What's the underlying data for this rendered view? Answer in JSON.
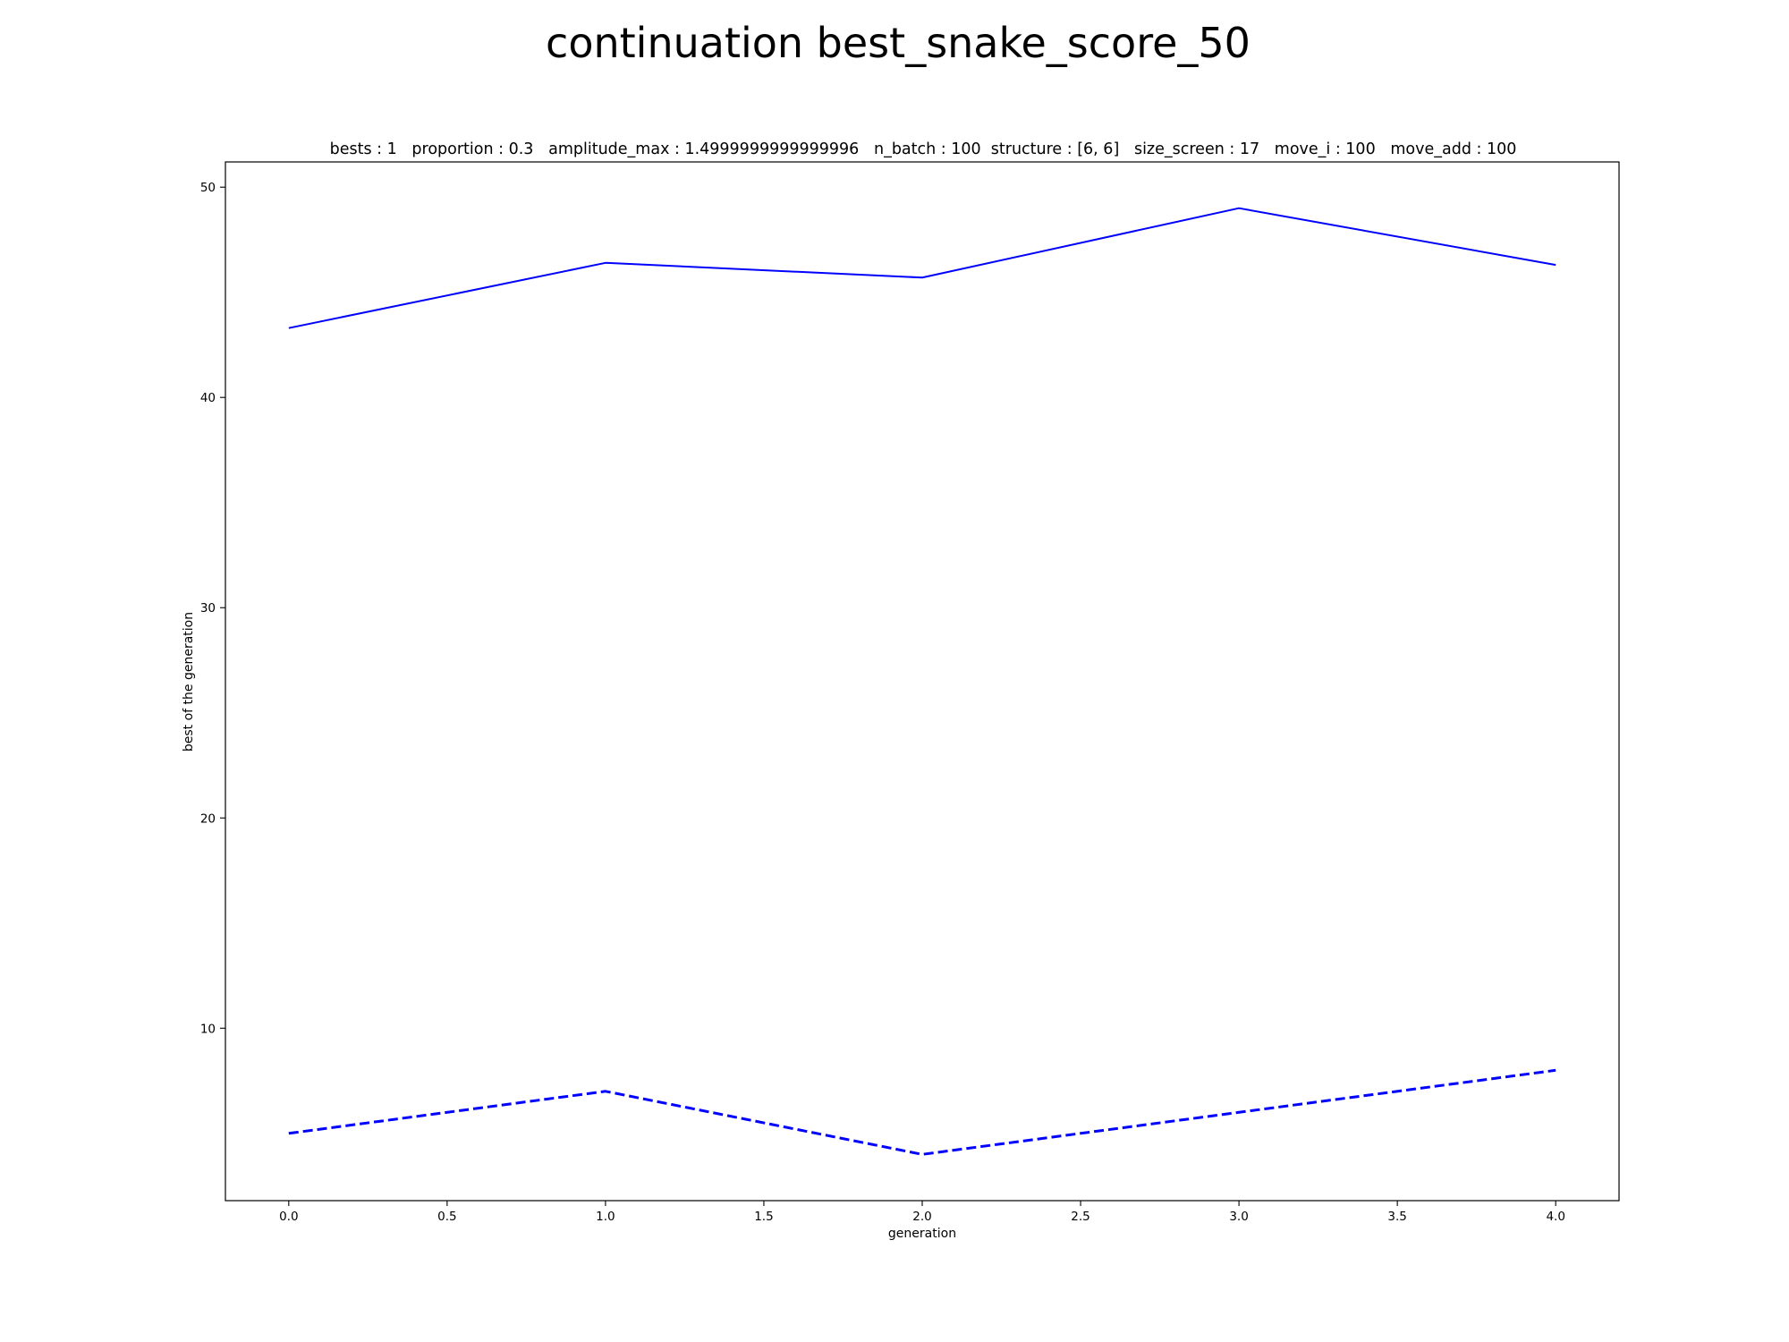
{
  "chart_data": {
    "type": "line",
    "title": "continuation best_snake_score_50",
    "subtitle": "bests : 1   proportion : 0.3   amplitude_max : 1.4999999999999996   n_batch : 100  structure : [6, 6]   size_screen : 17   move_i : 100   move_add : 100",
    "xlabel": "generation",
    "ylabel": "best of the generation",
    "xlim": [
      -0.2,
      4.2
    ],
    "ylim": [
      1.8,
      51.2
    ],
    "xticks": [
      0.0,
      0.5,
      1.0,
      1.5,
      2.0,
      2.5,
      3.0,
      3.5,
      4.0
    ],
    "xtick_labels": [
      "0.0",
      "0.5",
      "1.0",
      "1.5",
      "2.0",
      "2.5",
      "3.0",
      "3.5",
      "4.0"
    ],
    "yticks": [
      10,
      20,
      30,
      40,
      50
    ],
    "ytick_labels": [
      "10",
      "20",
      "30",
      "40",
      "50"
    ],
    "grid": false,
    "x": [
      0,
      1,
      2,
      3,
      4
    ],
    "series": [
      {
        "values": [
          43.3,
          46.4,
          45.7,
          49.0,
          46.3
        ],
        "color": "#0000ff",
        "style": "solid"
      },
      {
        "values": [
          5.0,
          7.0,
          4.0,
          6.0,
          8.0
        ],
        "color": "#0000ff",
        "style": "dashed"
      }
    ]
  }
}
